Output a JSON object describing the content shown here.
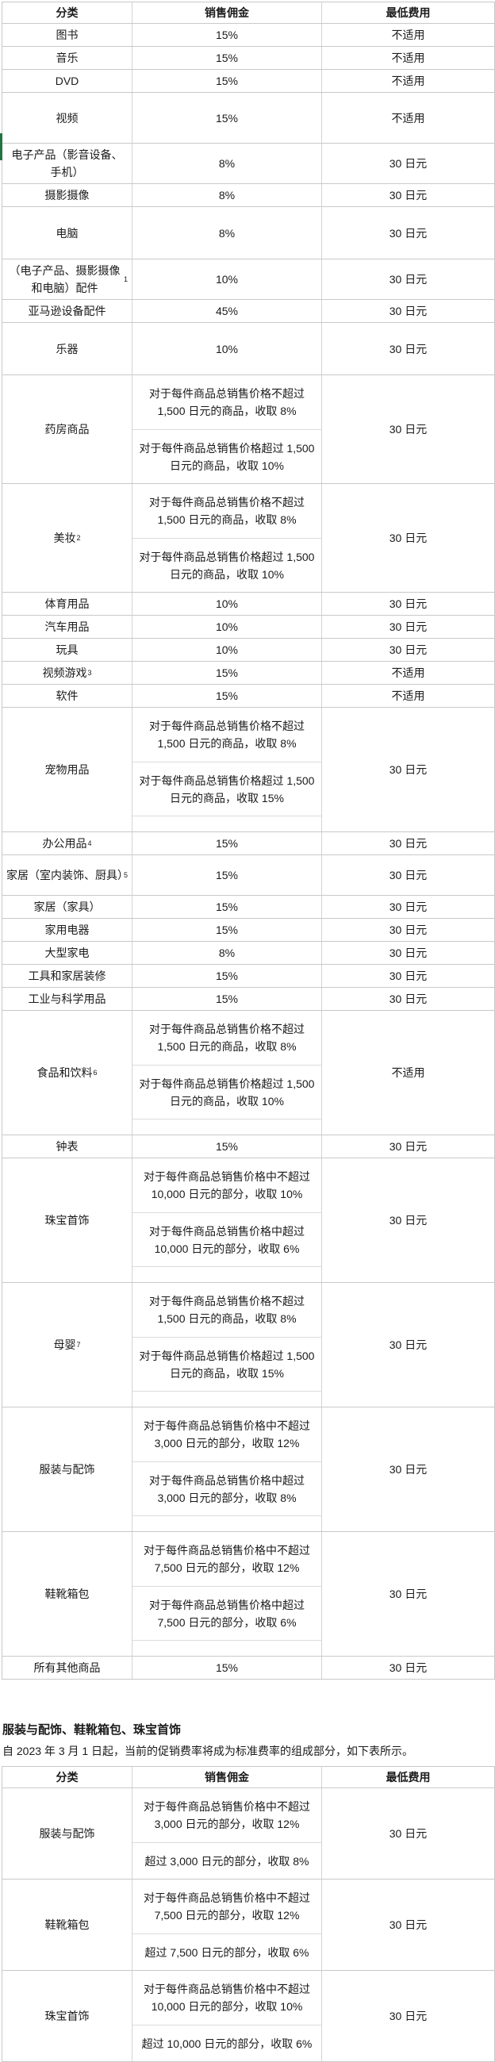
{
  "section": {
    "heading": "服装与配饰、鞋靴箱包、珠宝首饰",
    "paragraph": "自 2023 年 3 月 1 日起，当前的促销费率将成为标准费率的组成部分，如下表所示。"
  },
  "table1": {
    "headers": [
      "分类",
      "销售佣金",
      "最低费用"
    ],
    "rows": [
      {
        "category": "图书",
        "commission": [
          "15%"
        ],
        "fee": "不适用"
      },
      {
        "category": "音乐",
        "commission": [
          "15%"
        ],
        "fee": "不适用"
      },
      {
        "category": "DVD",
        "commission": [
          "15%"
        ],
        "fee": "不适用"
      },
      {
        "category": "视频",
        "commission": [
          "15%"
        ],
        "fee": "不适用"
      },
      {
        "category": "电子产品（影音设备、手机）",
        "commission": [
          "8%"
        ],
        "fee": "30 日元"
      },
      {
        "category": "摄影摄像",
        "commission": [
          "8%"
        ],
        "fee": "30 日元"
      },
      {
        "category": "电脑",
        "commission": [
          "8%"
        ],
        "fee": "30 日元"
      },
      {
        "category": "（电子产品、摄影摄像和电脑）配件",
        "sup": "1",
        "commission": [
          "10%"
        ],
        "fee": "30 日元"
      },
      {
        "category": "亚马逊设备配件",
        "commission": [
          "45%"
        ],
        "fee": "30 日元"
      },
      {
        "category": "乐器",
        "commission": [
          "10%"
        ],
        "fee": "30 日元"
      },
      {
        "category": "药房商品",
        "commission": [
          "对于每件商品总销售价格不超过 1,500 日元的商品，收取 8%",
          "对于每件商品总销售价格超过 1,500 日元的商品，收取 10%"
        ],
        "fee": "30 日元"
      },
      {
        "category": "美妆",
        "sup": "2",
        "commission": [
          "对于每件商品总销售价格不超过 1,500 日元的商品，收取 8%",
          "对于每件商品总销售价格超过 1,500 日元的商品，收取 10%"
        ],
        "fee": "30 日元"
      },
      {
        "category": "体育用品",
        "commission": [
          "10%"
        ],
        "fee": "30 日元"
      },
      {
        "category": "汽车用品",
        "commission": [
          "10%"
        ],
        "fee": "30 日元"
      },
      {
        "category": "玩具",
        "commission": [
          "10%"
        ],
        "fee": "30 日元"
      },
      {
        "category": "视频游戏",
        "sup": "3",
        "commission": [
          "15%"
        ],
        "fee": "不适用"
      },
      {
        "category": "软件",
        "commission": [
          "15%"
        ],
        "fee": "不适用"
      },
      {
        "category": "宠物用品",
        "commission": [
          "对于每件商品总销售价格不超过 1,500 日元的商品，收取 8%",
          "对于每件商品总销售价格超过 1,500 日元的商品，收取 15%",
          ""
        ],
        "fee": "30 日元"
      },
      {
        "category": "办公用品",
        "sup": "4",
        "commission": [
          "15%"
        ],
        "fee": "30 日元"
      },
      {
        "category": "家居（室内装饰、厨具）",
        "sup": "5",
        "commission": [
          "15%"
        ],
        "fee": "30 日元"
      },
      {
        "category": "家居（家具）",
        "commission": [
          "15%"
        ],
        "fee": "30 日元"
      },
      {
        "category": "家用电器",
        "commission": [
          "15%"
        ],
        "fee": "30 日元"
      },
      {
        "category": "大型家电",
        "commission": [
          "8%"
        ],
        "fee": "30 日元"
      },
      {
        "category": "工具和家居装修",
        "commission": [
          "15%"
        ],
        "fee": "30 日元"
      },
      {
        "category": "工业与科学用品",
        "commission": [
          "15%"
        ],
        "fee": "30 日元"
      },
      {
        "category": "食品和饮料",
        "sup": "6",
        "commission": [
          "对于每件商品总销售价格不超过 1,500 日元的商品，收取 8%",
          "对于每件商品总销售价格超过 1,500 日元的商品，收取 10%",
          ""
        ],
        "fee": "不适用"
      },
      {
        "category": "钟表",
        "commission": [
          "15%"
        ],
        "fee": "30 日元"
      },
      {
        "category": "珠宝首饰",
        "commission": [
          "对于每件商品总销售价格中不超过 10,000 日元的部分，收取 10%",
          "对于每件商品总销售价格中超过 10,000 日元的部分，收取 6%",
          ""
        ],
        "fee": "30 日元"
      },
      {
        "category": "母婴",
        "sup": "7",
        "commission": [
          "对于每件商品总销售价格不超过 1,500 日元的商品，收取 8%",
          "对于每件商品总销售价格超过 1,500 日元的商品，收取 15%",
          ""
        ],
        "fee": "30 日元"
      },
      {
        "category": "服装与配饰",
        "commission": [
          "对于每件商品总销售价格中不超过 3,000 日元的部分，收取 12%",
          "对于每件商品总销售价格中超过 3,000 日元的部分，收取 8%",
          ""
        ],
        "fee": "30 日元"
      },
      {
        "category": "鞋靴箱包",
        "commission": [
          "对于每件商品总销售价格中不超过 7,500 日元的部分，收取 12%",
          "对于每件商品总销售价格中超过 7,500 日元的部分，收取 6%",
          ""
        ],
        "fee": "30 日元"
      },
      {
        "category": "所有其他商品",
        "commission": [
          "15%"
        ],
        "fee": "30 日元"
      }
    ]
  },
  "table2": {
    "headers": [
      "分类",
      "销售佣金",
      "最低费用"
    ],
    "rows": [
      {
        "category": "服装与配饰",
        "commission": [
          "对于每件商品总销售价格中不超过 3,000 日元的部分，收取 12%",
          "超过 3,000 日元的部分，收取 8%"
        ],
        "fee": "30 日元"
      },
      {
        "category": "鞋靴箱包",
        "commission": [
          "对于每件商品总销售价格中不超过 7,500 日元的部分，收取 12%",
          "超过 7,500 日元的部分，收取 6%"
        ],
        "fee": "30 日元"
      },
      {
        "category": "珠宝首饰",
        "commission": [
          "对于每件商品总销售价格中不超过 10,000 日元的部分，收取 10%",
          "超过 10,000 日元的部分，收取 6%"
        ],
        "fee": "30 日元"
      }
    ]
  }
}
